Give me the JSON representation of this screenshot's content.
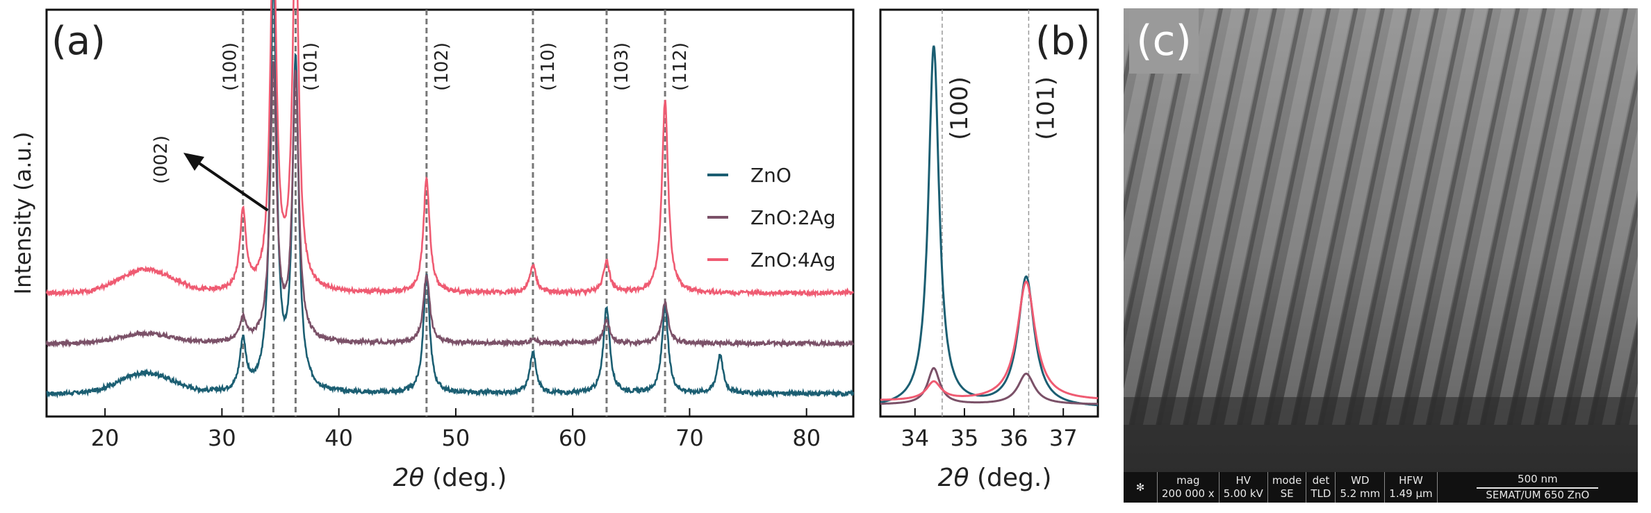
{
  "chart_data": [
    {
      "panel": "a",
      "type": "line",
      "panel_label": "(a)",
      "xlabel_italic": "2θ",
      "xlabel_unit": " (deg.)",
      "ylabel": "Intensity (a.u.)",
      "xlim": [
        15,
        84
      ],
      "xticks": [
        20,
        30,
        40,
        50,
        60,
        70,
        80
      ],
      "reference_lines": [
        {
          "x": 31.8,
          "label": "(100)"
        },
        {
          "x": 34.4,
          "label": ""
        },
        {
          "x": 36.3,
          "label": "(101)"
        },
        {
          "x": 47.5,
          "label": "(102)"
        },
        {
          "x": 56.6,
          "label": "(110)"
        },
        {
          "x": 62.9,
          "label": "(103)"
        },
        {
          "x": 67.9,
          "label": "(112)"
        }
      ],
      "annotation": {
        "label": "(002)",
        "arrow_to": 34.4
      },
      "legend_position": "right",
      "series": [
        {
          "name": "ZnO",
          "color": "#1b5e72",
          "baseline": 0.0,
          "peaks": [
            [
              31.8,
              0.55
            ],
            [
              34.4,
              4.5
            ],
            [
              36.3,
              3.6
            ],
            [
              47.5,
              1.3
            ],
            [
              56.6,
              0.45
            ],
            [
              62.9,
              0.95
            ],
            [
              67.9,
              0.95
            ],
            [
              72.6,
              0.42
            ]
          ],
          "hump": [
            23.5,
            0.22
          ]
        },
        {
          "name": "ZnO:2Ag",
          "color": "#7b5168",
          "baseline": 0.55,
          "peaks": [
            [
              31.8,
              0.25
            ],
            [
              34.4,
              3.0
            ],
            [
              36.3,
              2.9
            ],
            [
              47.5,
              0.75
            ],
            [
              56.6,
              0.05
            ],
            [
              62.9,
              0.25
            ],
            [
              67.9,
              0.45
            ]
          ],
          "hump": [
            23.5,
            0.1
          ]
        },
        {
          "name": "ZnO:4Ag",
          "color": "#ef5b72",
          "baseline": 1.1,
          "peaks": [
            [
              31.8,
              0.85
            ],
            [
              34.4,
              4.0
            ],
            [
              36.3,
              4.0
            ],
            [
              47.5,
              1.25
            ],
            [
              56.6,
              0.3
            ],
            [
              62.9,
              0.35
            ],
            [
              67.9,
              2.1
            ]
          ],
          "hump": [
            23.5,
            0.25
          ]
        }
      ]
    },
    {
      "panel": "b",
      "type": "line",
      "panel_label": "(b)",
      "xlabel_italic": "2θ",
      "xlabel_unit": " (deg.)",
      "xlim": [
        33.3,
        37.7
      ],
      "xticks": [
        34,
        35,
        36,
        37
      ],
      "reference_lines": [
        {
          "x": 34.55,
          "label": "(100)"
        },
        {
          "x": 36.3,
          "label": "(101)"
        }
      ],
      "series": [
        {
          "name": "ZnO",
          "color": "#1b5e72",
          "peaks": [
            [
              34.38,
              1.0,
              0.13
            ],
            [
              36.25,
              0.36,
              0.2
            ]
          ],
          "offset": 0.0
        },
        {
          "name": "ZnO:2Ag",
          "color": "#7b5168",
          "peaks": [
            [
              34.38,
              0.1,
              0.15
            ],
            [
              36.25,
              0.085,
              0.2
            ]
          ],
          "offset": 0.01
        },
        {
          "name": "ZnO:4Ag",
          "color": "#ef5b72",
          "peaks": [
            [
              34.38,
              0.05,
              0.18
            ],
            [
              36.25,
              0.33,
              0.22
            ]
          ],
          "offset": 0.02
        }
      ]
    }
  ],
  "sem": {
    "panel_label": "(c)",
    "bar": {
      "mag_label": "mag",
      "mag_value": "200 000 x",
      "hv_label": "HV",
      "hv_value": "5.00 kV",
      "mode_label": "mode",
      "mode_value": "SE",
      "det_label": "det",
      "det_value": "TLD",
      "wd_label": "WD",
      "wd_value": "5.2 mm",
      "hfw_label": "HFW",
      "hfw_value": "1.49 μm",
      "scale_label": "500 nm",
      "sample_label": "SEMAT/UM 650 ZnO"
    }
  }
}
